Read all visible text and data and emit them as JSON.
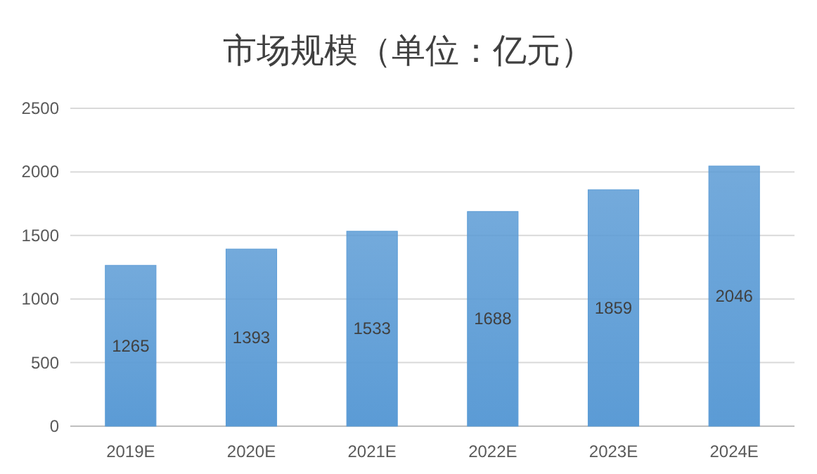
{
  "chart_data": {
    "type": "bar",
    "title": "市场规模（单位：亿元）",
    "categories": [
      "2019E",
      "2020E",
      "2021E",
      "2022E",
      "2023E",
      "2024E"
    ],
    "values": [
      1265,
      1393,
      1533,
      1688,
      1859,
      2046
    ],
    "color": "#5b9bd5",
    "ylim": [
      0,
      2500
    ],
    "yticks": [
      0,
      500,
      1000,
      1500,
      2000,
      2500
    ],
    "grid": "y",
    "data_labels": true
  }
}
